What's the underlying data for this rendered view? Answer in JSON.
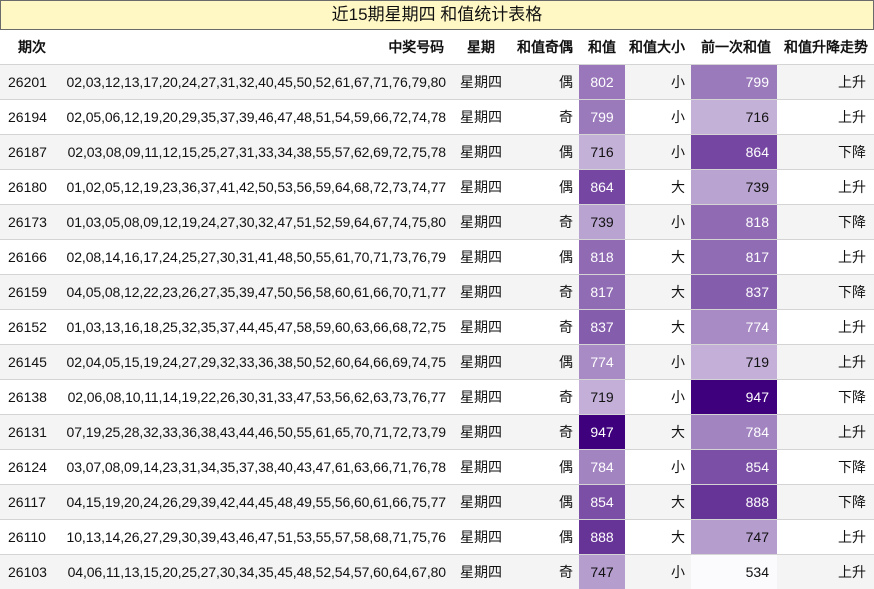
{
  "title": "近15期星期四 和值统计表格",
  "headers": {
    "issue": "期次",
    "numbers": "中奖号码",
    "day": "星期",
    "parity": "和值奇偶",
    "sum": "和值",
    "size": "和值大小",
    "prev": "前一次和值",
    "trend": "和值升降走势"
  },
  "shading": {
    "value_min": 534,
    "value_max": 947,
    "light_color": "#fbfafd",
    "dark_color": "#3f007d"
  },
  "rows": [
    {
      "issue": "26201",
      "numbers": "02,03,12,13,17,20,24,27,31,32,40,45,50,52,61,67,71,76,79,80",
      "day": "星期四",
      "parity": "偶",
      "sum": "802",
      "size": "小",
      "prev": "799",
      "trend": "上升"
    },
    {
      "issue": "26194",
      "numbers": "02,05,06,12,19,20,29,35,37,39,46,47,48,51,54,59,66,72,74,78",
      "day": "星期四",
      "parity": "奇",
      "sum": "799",
      "size": "小",
      "prev": "716",
      "trend": "上升"
    },
    {
      "issue": "26187",
      "numbers": "02,03,08,09,11,12,15,25,27,31,33,34,38,55,57,62,69,72,75,78",
      "day": "星期四",
      "parity": "偶",
      "sum": "716",
      "size": "小",
      "prev": "864",
      "trend": "下降"
    },
    {
      "issue": "26180",
      "numbers": "01,02,05,12,19,23,36,37,41,42,50,53,56,59,64,68,72,73,74,77",
      "day": "星期四",
      "parity": "偶",
      "sum": "864",
      "size": "大",
      "prev": "739",
      "trend": "上升"
    },
    {
      "issue": "26173",
      "numbers": "01,03,05,08,09,12,19,24,27,30,32,47,51,52,59,64,67,74,75,80",
      "day": "星期四",
      "parity": "奇",
      "sum": "739",
      "size": "小",
      "prev": "818",
      "trend": "下降"
    },
    {
      "issue": "26166",
      "numbers": "02,08,14,16,17,24,25,27,30,31,41,48,50,55,61,70,71,73,76,79",
      "day": "星期四",
      "parity": "偶",
      "sum": "818",
      "size": "大",
      "prev": "817",
      "trend": "上升"
    },
    {
      "issue": "26159",
      "numbers": "04,05,08,12,22,23,26,27,35,39,47,50,56,58,60,61,66,70,71,77",
      "day": "星期四",
      "parity": "奇",
      "sum": "817",
      "size": "大",
      "prev": "837",
      "trend": "下降"
    },
    {
      "issue": "26152",
      "numbers": "01,03,13,16,18,25,32,35,37,44,45,47,58,59,60,63,66,68,72,75",
      "day": "星期四",
      "parity": "奇",
      "sum": "837",
      "size": "大",
      "prev": "774",
      "trend": "上升"
    },
    {
      "issue": "26145",
      "numbers": "02,04,05,15,19,24,27,29,32,33,36,38,50,52,60,64,66,69,74,75",
      "day": "星期四",
      "parity": "偶",
      "sum": "774",
      "size": "小",
      "prev": "719",
      "trend": "上升"
    },
    {
      "issue": "26138",
      "numbers": "02,06,08,10,11,14,19,22,26,30,31,33,47,53,56,62,63,73,76,77",
      "day": "星期四",
      "parity": "奇",
      "sum": "719",
      "size": "小",
      "prev": "947",
      "trend": "下降"
    },
    {
      "issue": "26131",
      "numbers": "07,19,25,28,32,33,36,38,43,44,46,50,55,61,65,70,71,72,73,79",
      "day": "星期四",
      "parity": "奇",
      "sum": "947",
      "size": "大",
      "prev": "784",
      "trend": "上升"
    },
    {
      "issue": "26124",
      "numbers": "03,07,08,09,14,23,31,34,35,37,38,40,43,47,61,63,66,71,76,78",
      "day": "星期四",
      "parity": "偶",
      "sum": "784",
      "size": "小",
      "prev": "854",
      "trend": "下降"
    },
    {
      "issue": "26117",
      "numbers": "04,15,19,20,24,26,29,39,42,44,45,48,49,55,56,60,61,66,75,77",
      "day": "星期四",
      "parity": "偶",
      "sum": "854",
      "size": "大",
      "prev": "888",
      "trend": "下降"
    },
    {
      "issue": "26110",
      "numbers": "10,13,14,26,27,29,30,39,43,46,47,51,53,55,57,58,68,71,75,76",
      "day": "星期四",
      "parity": "偶",
      "sum": "888",
      "size": "大",
      "prev": "747",
      "trend": "上升"
    },
    {
      "issue": "26103",
      "numbers": "04,06,11,13,15,20,25,27,30,34,35,45,48,52,54,57,60,64,67,80",
      "day": "星期四",
      "parity": "奇",
      "sum": "747",
      "size": "小",
      "prev": "534",
      "trend": "上升"
    }
  ]
}
